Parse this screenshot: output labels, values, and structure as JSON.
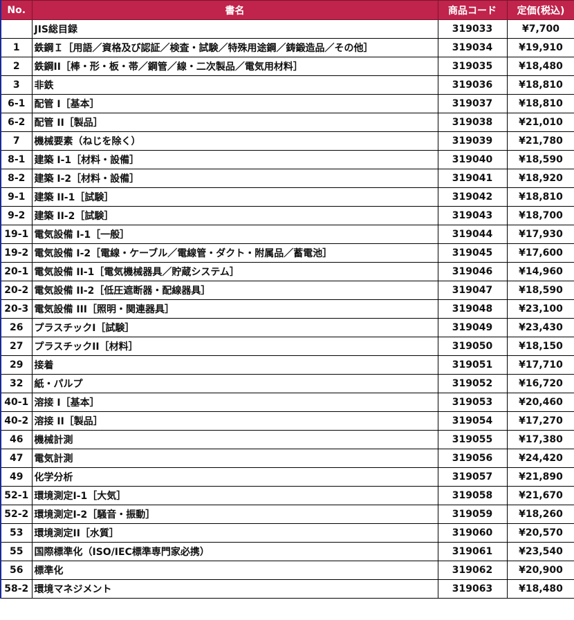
{
  "header_color": "#c0234b",
  "columns": {
    "no": "No.",
    "title": "書名",
    "code": "商品コード",
    "price": "定価(税込)"
  },
  "rows": [
    {
      "no": "",
      "title": "JIS総目録",
      "code": "319033",
      "price": "¥7,700"
    },
    {
      "no": "1",
      "title": "鉄鋼Ｉ［用語／資格及び認証／検査・試験／特殊用途鋼／鋳鍛造品／その他］",
      "code": "319034",
      "price": "¥19,910"
    },
    {
      "no": "2",
      "title": "鉄鋼II［棒・形・板・帯／鋼管／線・二次製品／電気用材料］",
      "code": "319035",
      "price": "¥18,480"
    },
    {
      "no": "3",
      "title": "非鉄",
      "code": "319036",
      "price": "¥18,810"
    },
    {
      "no": "6-1",
      "title": "配管 I［基本］",
      "code": "319037",
      "price": "¥18,810"
    },
    {
      "no": "6-2",
      "title": "配管 II［製品］",
      "code": "319038",
      "price": "¥21,010"
    },
    {
      "no": "7",
      "title": "機械要素（ねじを除く）",
      "code": "319039",
      "price": "¥21,780"
    },
    {
      "no": "8-1",
      "title": "建築 I-1［材料・設備］",
      "code": "319040",
      "price": "¥18,590"
    },
    {
      "no": "8-2",
      "title": "建築 I-2［材料・設備］",
      "code": "319041",
      "price": "¥18,920"
    },
    {
      "no": "9-1",
      "title": "建築 II-1［試験］",
      "code": "319042",
      "price": "¥18,810"
    },
    {
      "no": "9-2",
      "title": "建築 II-2［試験］",
      "code": "319043",
      "price": "¥18,700"
    },
    {
      "no": "19-1",
      "title": "電気設備 I-1［一般］",
      "code": "319044",
      "price": "¥17,930"
    },
    {
      "no": "19-2",
      "title": "電気設備 I-2［電線・ケーブル／電線管・ダクト・附属品／蓄電池］",
      "code": "319045",
      "price": "¥17,600"
    },
    {
      "no": "20-1",
      "title": "電気設備 II-1［電気機械器具／貯蔵システム］",
      "code": "319046",
      "price": "¥14,960"
    },
    {
      "no": "20-2",
      "title": "電気設備 II-2［低圧遮断器・配線器具］",
      "code": "319047",
      "price": "¥18,590"
    },
    {
      "no": "20-3",
      "title": "電気設備 III［照明・関連器具］",
      "code": "319048",
      "price": "¥23,100"
    },
    {
      "no": "26",
      "title": "プラスチックI［試験］",
      "code": "319049",
      "price": "¥23,430"
    },
    {
      "no": "27",
      "title": "プラスチックII［材料］",
      "code": "319050",
      "price": "¥18,150"
    },
    {
      "no": "29",
      "title": "接着",
      "code": "319051",
      "price": "¥17,710"
    },
    {
      "no": "32",
      "title": "紙・パルプ",
      "code": "319052",
      "price": "¥16,720"
    },
    {
      "no": "40-1",
      "title": "溶接 I［基本］",
      "code": "319053",
      "price": "¥20,460"
    },
    {
      "no": "40-2",
      "title": "溶接 II［製品］",
      "code": "319054",
      "price": "¥17,270"
    },
    {
      "no": "46",
      "title": "機械計測",
      "code": "319055",
      "price": "¥17,380"
    },
    {
      "no": "47",
      "title": "電気計測",
      "code": "319056",
      "price": "¥24,420"
    },
    {
      "no": "49",
      "title": "化学分析",
      "code": "319057",
      "price": "¥21,890"
    },
    {
      "no": "52-1",
      "title": "環境測定I-1［大気］",
      "code": "319058",
      "price": "¥21,670"
    },
    {
      "no": "52-2",
      "title": "環境測定I-2［騒音・振動］",
      "code": "319059",
      "price": "¥18,260"
    },
    {
      "no": "53",
      "title": "環境測定II［水質］",
      "code": "319060",
      "price": "¥20,570"
    },
    {
      "no": "55",
      "title": "国際標準化（ISO/IEC標準専門家必携）",
      "code": "319061",
      "price": "¥23,540"
    },
    {
      "no": "56",
      "title": "標準化",
      "code": "319062",
      "price": "¥20,900"
    },
    {
      "no": "58-2",
      "title": "環境マネジメント",
      "code": "319063",
      "price": "¥18,480"
    }
  ]
}
